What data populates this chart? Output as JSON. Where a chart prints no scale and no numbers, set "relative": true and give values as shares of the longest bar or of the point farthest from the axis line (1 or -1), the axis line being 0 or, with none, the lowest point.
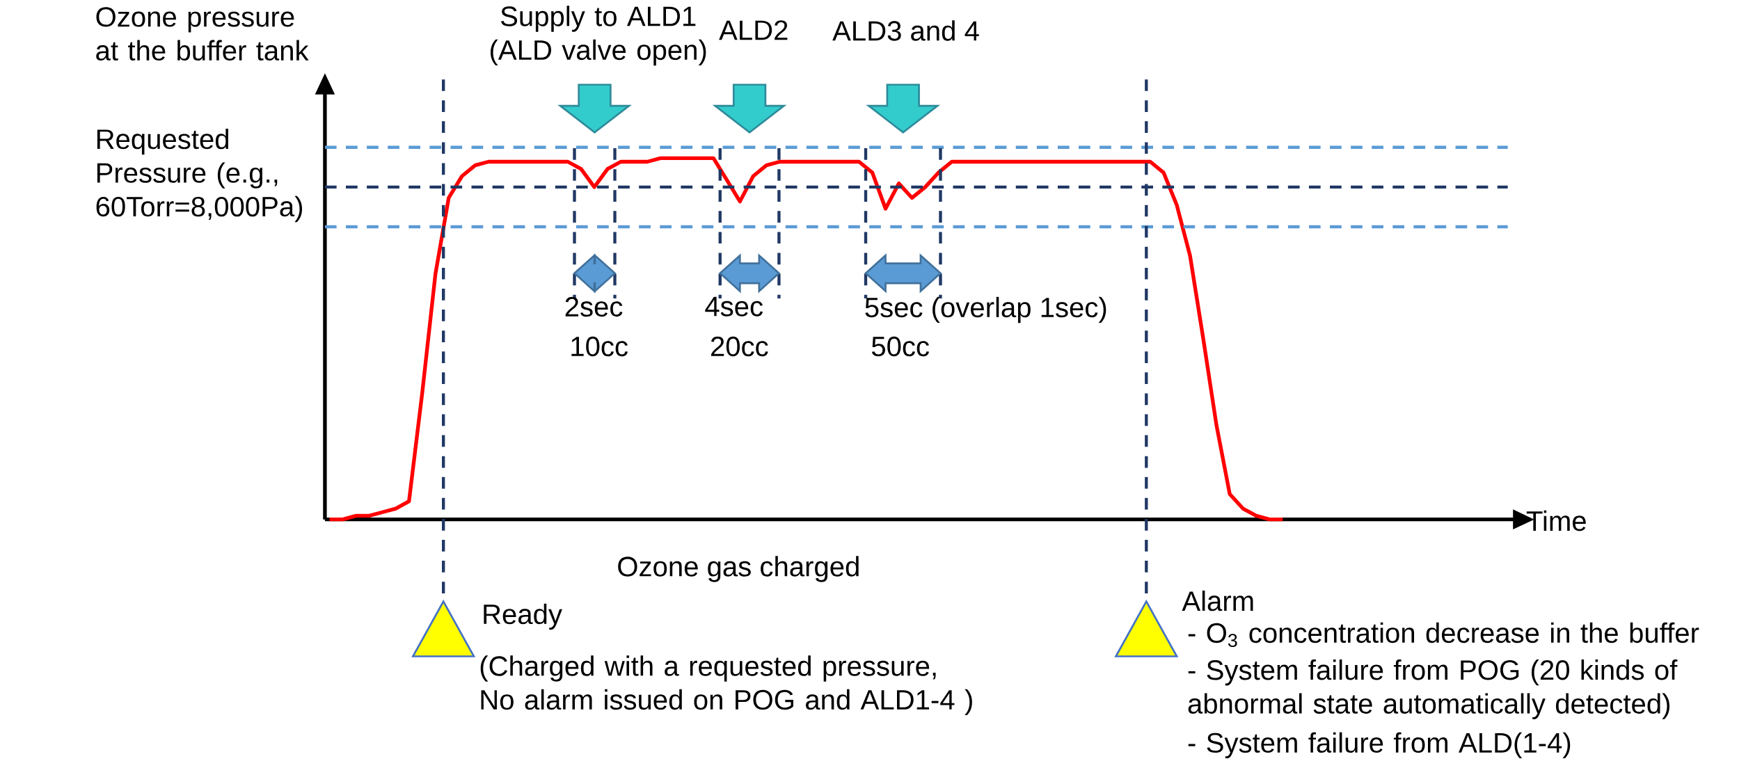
{
  "chart_data": {
    "type": "line",
    "relative": true,
    "ylabel": "Ozone pressure at the buffer tank",
    "categories": [
      null,
      null,
      null,
      null,
      null,
      null,
      null,
      null,
      null,
      null,
      null,
      null,
      null,
      null,
      null,
      null,
      null,
      null,
      null,
      null,
      null,
      null,
      null,
      null,
      null,
      null,
      null,
      null,
      null,
      null,
      null,
      null,
      null,
      null,
      null,
      null,
      null,
      null,
      null,
      null,
      null,
      null,
      null,
      null,
      null,
      null,
      null,
      null,
      null,
      null,
      null,
      null,
      null,
      null,
      null,
      null,
      null,
      null,
      null,
      null,
      null,
      null,
      null,
      null,
      null,
      null,
      null,
      null,
      null,
      null,
      null,
      null,
      null
    ],
    "values": [
      0,
      0,
      0.01,
      0.01,
      0.02,
      0.03,
      0.05,
      0.35,
      0.68,
      0.89,
      0.95,
      0.98,
      0.99,
      0.99,
      0.99,
      0.99,
      0.99,
      0.99,
      0.99,
      0.97,
      0.92,
      0.97,
      0.99,
      0.99,
      0.99,
      1.0,
      1.0,
      1.0,
      1.0,
      1.0,
      0.94,
      0.88,
      0.95,
      0.98,
      0.99,
      0.99,
      0.99,
      0.99,
      0.99,
      0.99,
      0.99,
      0.96,
      0.86,
      0.93,
      0.89,
      0.92,
      0.96,
      0.99,
      0.99,
      0.99,
      0.99,
      0.99,
      0.99,
      0.99,
      0.99,
      0.99,
      0.99,
      0.99,
      0.99,
      0.99,
      0.99,
      0.99,
      0.99,
      0.96,
      0.87,
      0.73,
      0.5,
      0.26,
      0.07,
      0.03,
      0.01,
      0,
      0
    ],
    "color": "#ff0000",
    "ref_lines": [
      {
        "axis": "y",
        "value": 1.03,
        "color": "#5b9bd5",
        "line_style": "dashed"
      },
      {
        "axis": "y",
        "value": 0.92,
        "color": "#203864",
        "line_style": "dashed"
      },
      {
        "axis": "y",
        "value": 0.81,
        "color": "#5b9bd5",
        "line_style": "dashed"
      }
    ],
    "annotations": [
      "Supply to ALD1 (ALD valve open)",
      "ALD2",
      "ALD3 and 4",
      "2sec",
      "10cc",
      "4sec",
      "20cc",
      "5sec (overlap 1sec)",
      "50cc",
      "Ozone gas charged",
      "(Charged with a requested pressure, No alarm issued on POG and ALD1-4 )",
      "- O$_{3}$ concentration decrease in the buffer",
      "- System failure from POG (20 kinds of abnormal state automatically detected)",
      "- System failure from ALD(1-4)",
      "Requested Pressure (e.g., 60Torr=8,000Pa)",
      "Ready",
      "Alarm",
      "Time"
    ]
  }
}
